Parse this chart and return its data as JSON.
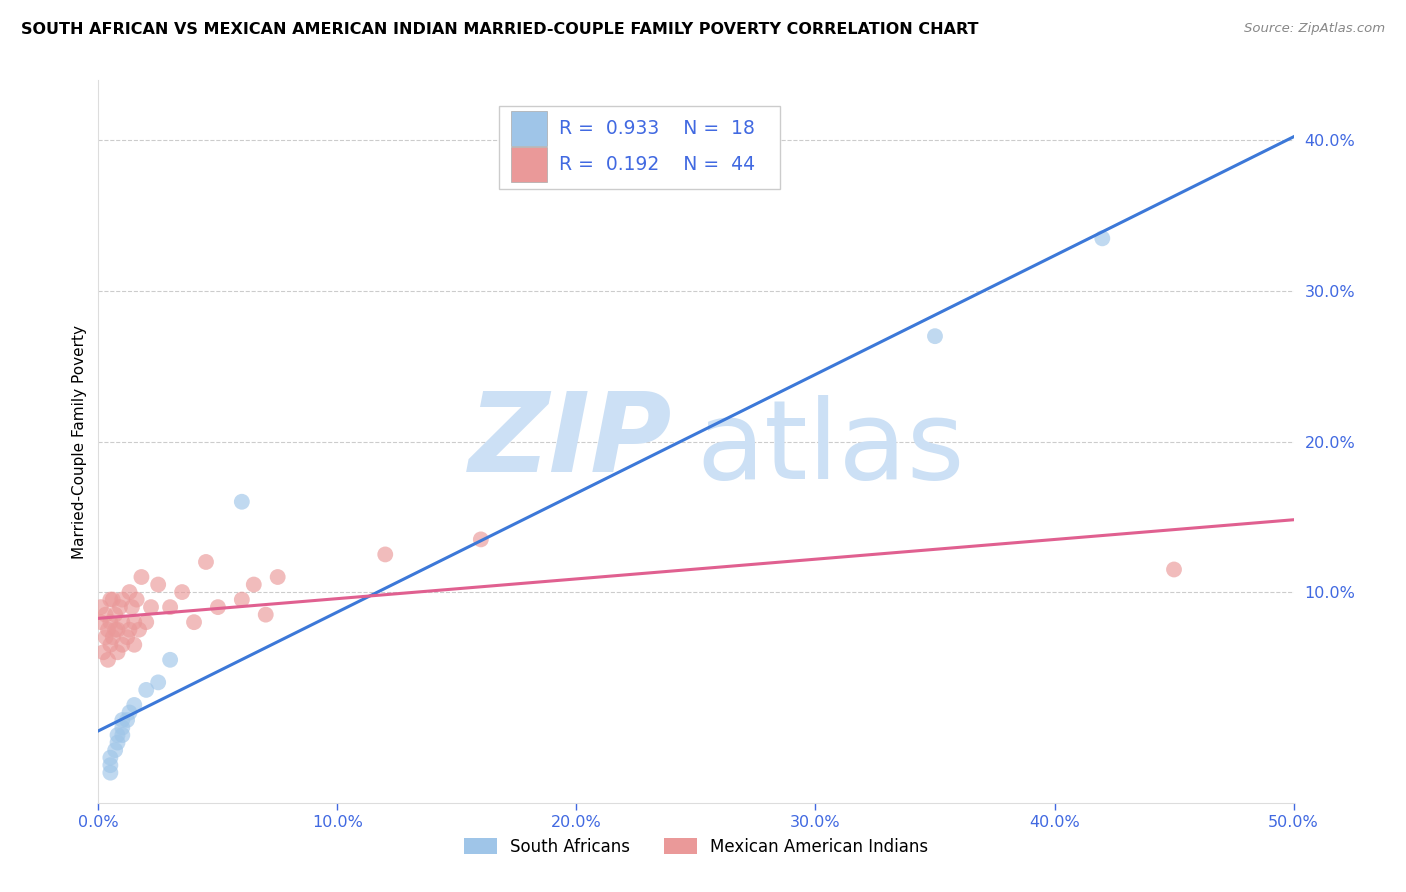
{
  "title": "SOUTH AFRICAN VS MEXICAN AMERICAN INDIAN MARRIED-COUPLE FAMILY POVERTY CORRELATION CHART",
  "source": "Source: ZipAtlas.com",
  "ylabel": "Married-Couple Family Poverty",
  "xlim": [
    0.0,
    0.5
  ],
  "ylim": [
    -0.04,
    0.44
  ],
  "yticks_right": [
    0.1,
    0.2,
    0.3,
    0.4
  ],
  "xticks": [
    0.0,
    0.1,
    0.2,
    0.3,
    0.4,
    0.5
  ],
  "legend_labels": [
    "South Africans",
    "Mexican American Indians"
  ],
  "blue_R": "0.933",
  "blue_N": "18",
  "pink_R": "0.192",
  "pink_N": "44",
  "blue_color": "#9fc5e8",
  "pink_color": "#ea9999",
  "blue_line_color": "#3c78d8",
  "pink_line_color": "#e06090",
  "watermark_zip": "ZIP",
  "watermark_atlas": "atlas",
  "watermark_color": "#cce0f5",
  "blue_points_x": [
    0.005,
    0.005,
    0.005,
    0.007,
    0.008,
    0.008,
    0.01,
    0.01,
    0.01,
    0.012,
    0.013,
    0.015,
    0.02,
    0.025,
    0.03,
    0.06,
    0.35,
    0.42
  ],
  "blue_points_y": [
    -0.01,
    -0.015,
    -0.02,
    -0.005,
    0.0,
    0.005,
    0.005,
    0.01,
    0.015,
    0.015,
    0.02,
    0.025,
    0.035,
    0.04,
    0.055,
    0.16,
    0.27,
    0.335
  ],
  "pink_points_x": [
    0.001,
    0.001,
    0.002,
    0.003,
    0.003,
    0.004,
    0.004,
    0.005,
    0.005,
    0.005,
    0.006,
    0.006,
    0.007,
    0.007,
    0.008,
    0.008,
    0.009,
    0.01,
    0.01,
    0.01,
    0.012,
    0.013,
    0.013,
    0.014,
    0.015,
    0.015,
    0.016,
    0.017,
    0.018,
    0.02,
    0.022,
    0.025,
    0.03,
    0.035,
    0.04,
    0.045,
    0.05,
    0.06,
    0.065,
    0.07,
    0.075,
    0.12,
    0.16,
    0.45
  ],
  "pink_points_y": [
    0.08,
    0.09,
    0.06,
    0.07,
    0.085,
    0.055,
    0.075,
    0.065,
    0.08,
    0.095,
    0.07,
    0.095,
    0.075,
    0.085,
    0.06,
    0.075,
    0.09,
    0.065,
    0.08,
    0.095,
    0.07,
    0.1,
    0.075,
    0.09,
    0.065,
    0.08,
    0.095,
    0.075,
    0.11,
    0.08,
    0.09,
    0.105,
    0.09,
    0.1,
    0.08,
    0.12,
    0.09,
    0.095,
    0.105,
    0.085,
    0.11,
    0.125,
    0.135,
    0.115
  ],
  "background_color": "#ffffff",
  "grid_color": "#cccccc",
  "title_fontsize": 11.5,
  "axis_label_fontsize": 11,
  "tick_color": "#4169E1",
  "point_size": 130,
  "point_alpha": 0.65
}
